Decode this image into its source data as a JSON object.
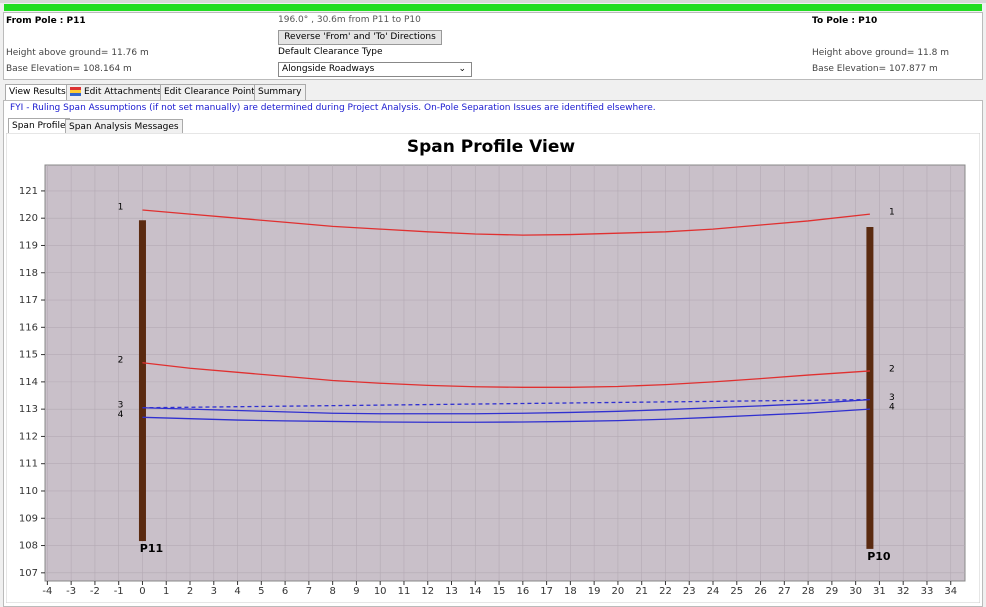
{
  "header": {
    "from_pole": "From Pole : P11",
    "span_info": "196.0° , 30.6m from P11 to P10",
    "reverse_button": "Reverse 'From' and 'To' Directions",
    "to_pole": "To Pole : P10",
    "from_height": "Height above ground= 11.76 m",
    "from_base": "Base Elevation= 108.164 m",
    "clearance_label": "Default Clearance Type",
    "clearance_value": "Alongside Roadways",
    "to_height": "Height above ground= 11.8 m",
    "to_base": "Base Elevation= 107.877 m"
  },
  "tabs": [
    "View Results",
    "Edit Attachments",
    "Edit Clearance Points",
    "Summary"
  ],
  "notice": "FYI - Ruling Span Assumptions (if not set manually) are determined during Project Analysis.  On-Pole Separation Issues are identified elsewhere.",
  "subtabs": [
    "Span Profile",
    "Span Analysis Messages"
  ],
  "chart_data": {
    "type": "line",
    "title": "Span Profile View",
    "x": [
      0,
      2,
      4,
      6,
      8,
      10,
      12,
      14,
      16,
      18,
      20,
      22,
      24,
      26,
      28,
      30.6
    ],
    "series": [
      {
        "name": "1",
        "color": "#e03030",
        "values": [
          120.3,
          120.15,
          120.0,
          119.85,
          119.7,
          119.6,
          119.5,
          119.42,
          119.38,
          119.4,
          119.45,
          119.5,
          119.6,
          119.75,
          119.9,
          120.15
        ]
      },
      {
        "name": "2",
        "color": "#e03030",
        "values": [
          114.7,
          114.5,
          114.35,
          114.2,
          114.05,
          113.95,
          113.87,
          113.82,
          113.8,
          113.8,
          113.83,
          113.9,
          114.0,
          114.12,
          114.25,
          114.4
        ]
      },
      {
        "name": "3",
        "color": "#3030d0",
        "values": [
          113.05,
          113.0,
          112.95,
          112.9,
          112.85,
          112.83,
          112.83,
          112.83,
          112.85,
          112.88,
          112.92,
          112.98,
          113.05,
          113.12,
          113.2,
          113.35
        ]
      },
      {
        "name": "4",
        "color": "#3030d0",
        "values": [
          112.7,
          112.65,
          112.6,
          112.57,
          112.55,
          112.53,
          112.52,
          112.52,
          112.53,
          112.55,
          112.58,
          112.63,
          112.7,
          112.78,
          112.86,
          113.0
        ]
      }
    ],
    "chord": {
      "color": "#3030d0",
      "dashed": true,
      "x": [
        0,
        30.6
      ],
      "values": [
        113.05,
        113.35
      ]
    },
    "poles": [
      {
        "name": "P11",
        "x": 0,
        "base": 108.164,
        "top": 119.924,
        "color": "#5a2a10"
      },
      {
        "name": "P10",
        "x": 30.6,
        "base": 107.877,
        "top": 119.677,
        "color": "#5a2a10"
      }
    ],
    "xlim": [
      -4.1,
      34.6
    ],
    "ylim": [
      106.7,
      121.95
    ],
    "xticks": [
      -4,
      -3,
      -2,
      -1,
      0,
      1,
      2,
      3,
      4,
      5,
      6,
      7,
      8,
      9,
      10,
      11,
      12,
      13,
      14,
      15,
      16,
      17,
      18,
      19,
      20,
      21,
      22,
      23,
      24,
      25,
      26,
      27,
      28,
      29,
      30,
      31,
      32,
      33,
      34
    ],
    "yticks": [
      107,
      108,
      109,
      110,
      111,
      112,
      113,
      114,
      115,
      116,
      117,
      118,
      119,
      120,
      121
    ],
    "grid": true,
    "plot_background": "#c9c0c9"
  }
}
